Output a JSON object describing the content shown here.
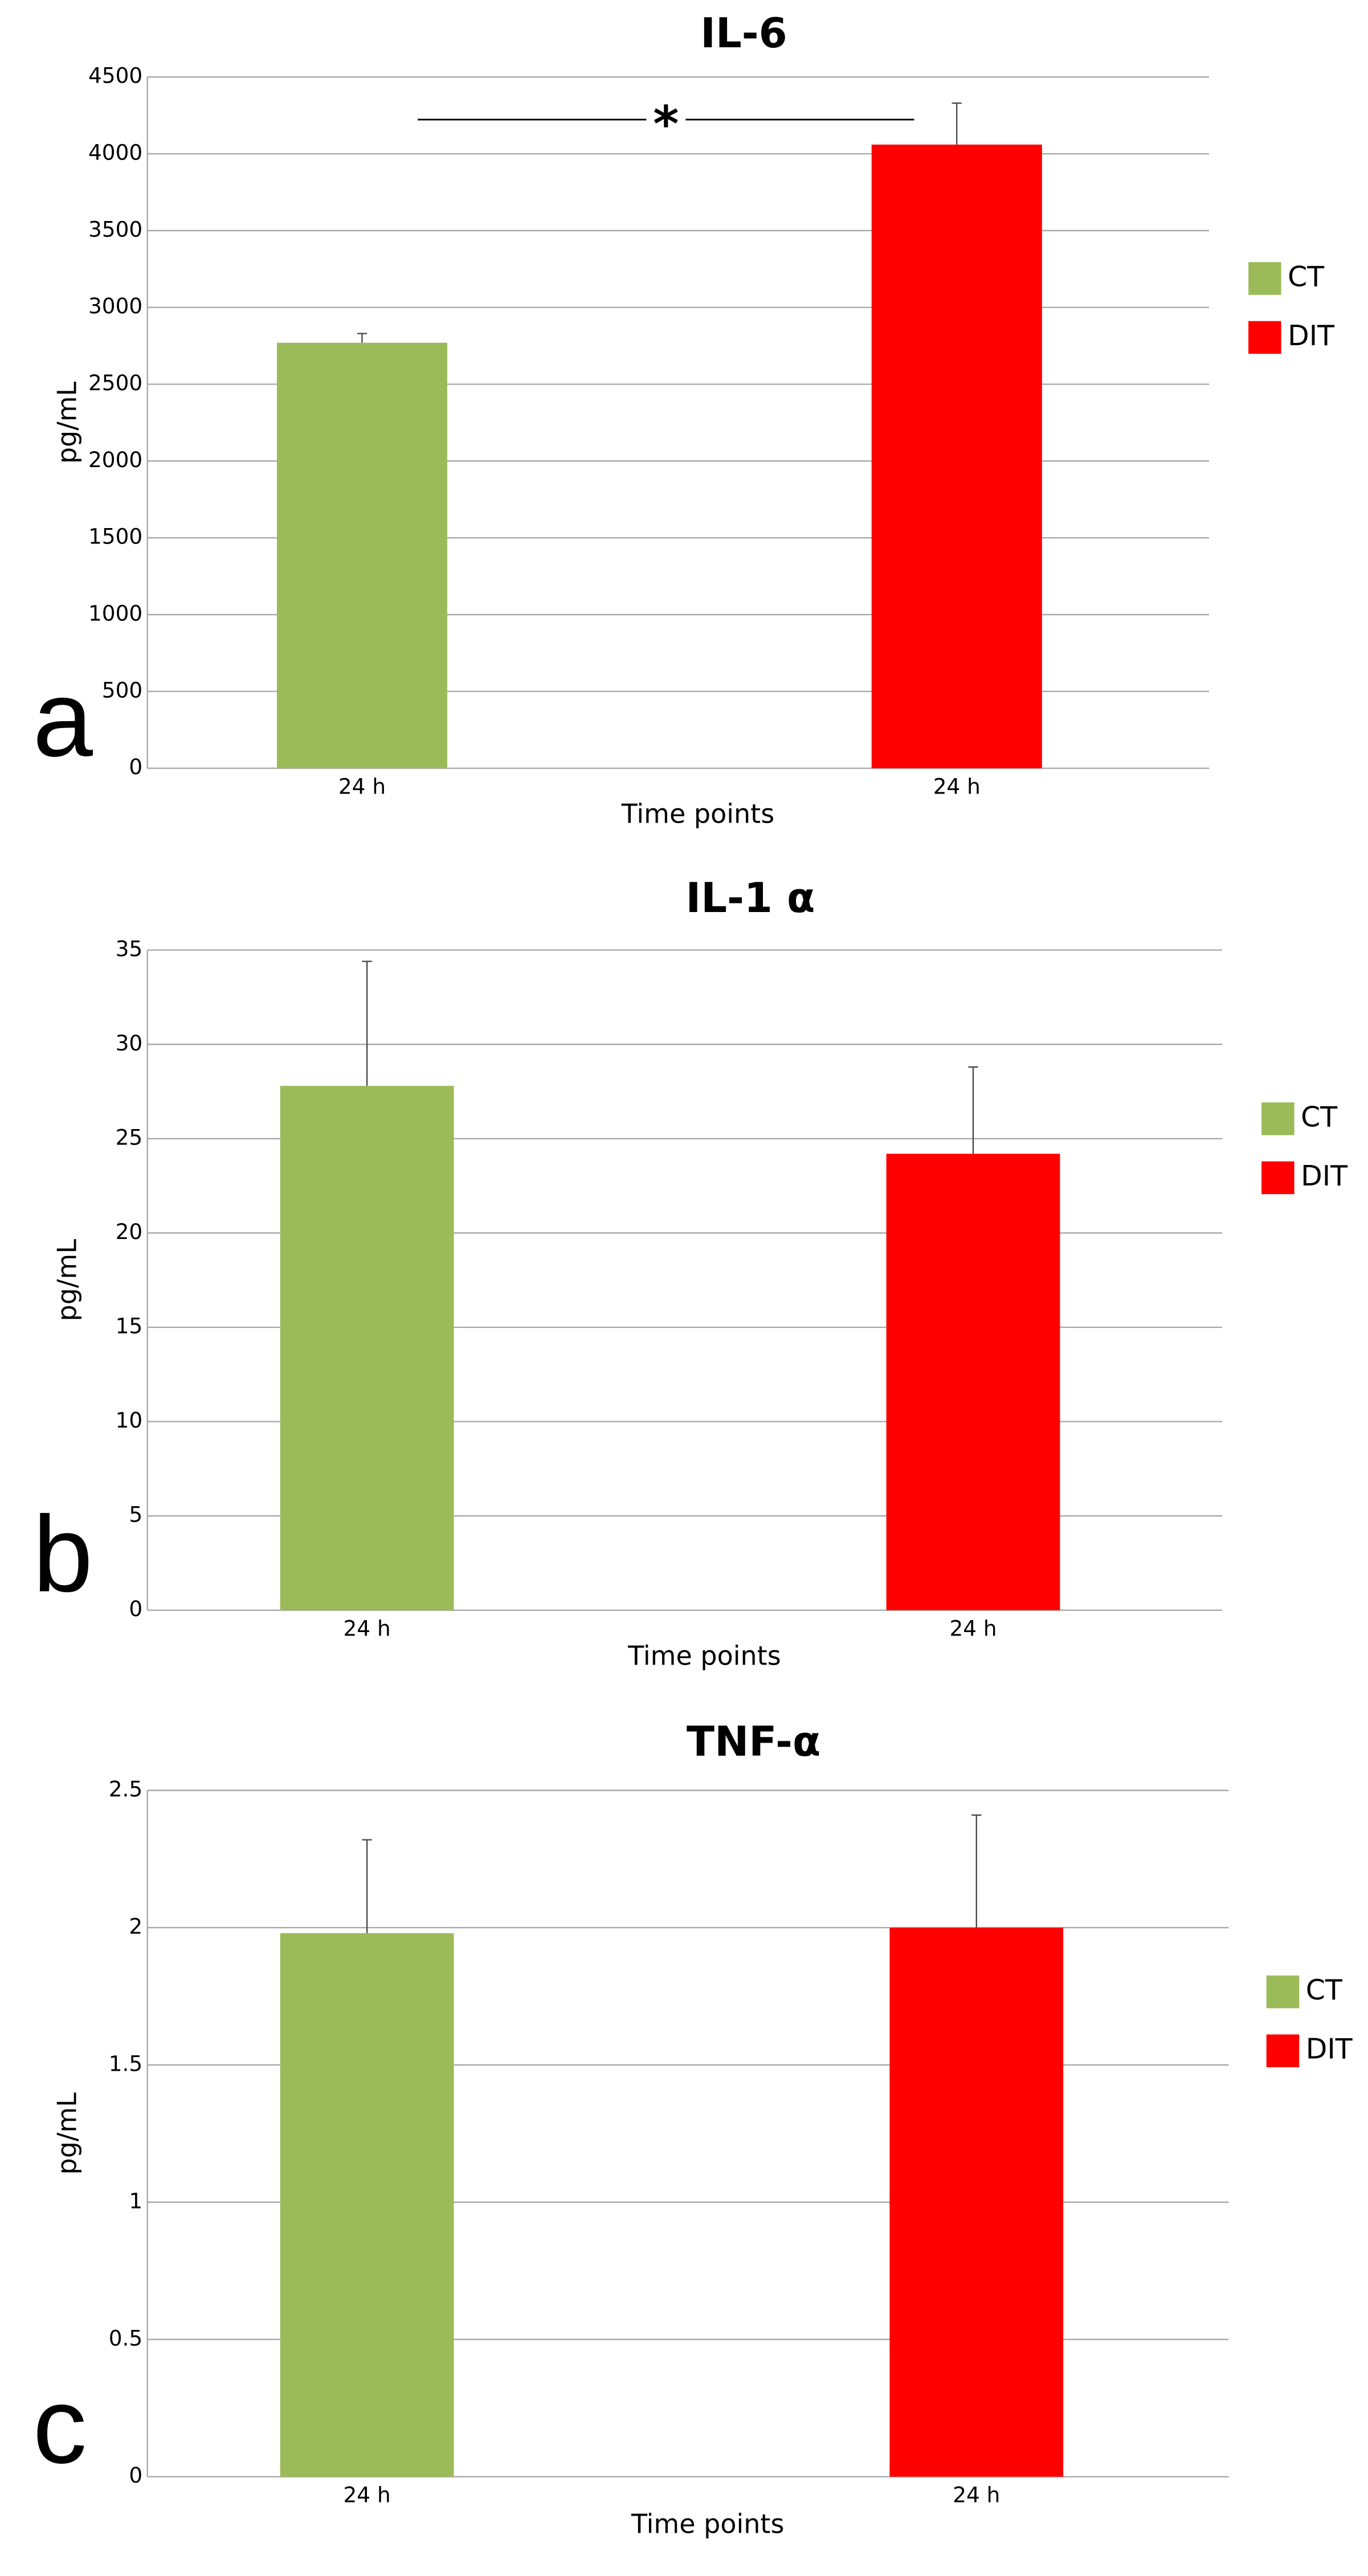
{
  "chart_data": [
    {
      "type": "bar",
      "title": "IL-6",
      "panel_label": "a",
      "x_label": "Time points",
      "y_label": "pg/mL",
      "categories": [
        "24 h",
        "24 h"
      ],
      "series": [
        {
          "name": "CT",
          "color": "#9bbb59",
          "values": [
            2770,
            null
          ],
          "errors": [
            60,
            null
          ]
        },
        {
          "name": "DIT",
          "color": "#ff0000",
          "values": [
            null,
            4060
          ],
          "errors": [
            null,
            270
          ]
        }
      ],
      "annotation": "*",
      "ylim": [
        0,
        4500
      ],
      "yticks": [
        0,
        500,
        1000,
        1500,
        2000,
        2500,
        3000,
        3500,
        4000,
        4500
      ],
      "grid": true,
      "legend": "right"
    },
    {
      "type": "bar",
      "title": "IL-1 α",
      "panel_label": "b",
      "x_label": "Time points",
      "y_label": "pg/mL",
      "categories": [
        "24 h",
        "24 h"
      ],
      "series": [
        {
          "name": "CT",
          "color": "#9bbb59",
          "values": [
            27.8,
            null
          ],
          "errors": [
            6.6,
            null
          ]
        },
        {
          "name": "DIT",
          "color": "#ff0000",
          "values": [
            null,
            24.2
          ],
          "errors": [
            null,
            4.6
          ]
        }
      ],
      "ylim": [
        0,
        35
      ],
      "yticks": [
        0,
        5,
        10,
        15,
        20,
        25,
        30,
        35
      ],
      "grid": true,
      "legend": "right"
    },
    {
      "type": "bar",
      "title": "TNF-α",
      "panel_label": "c",
      "x_label": "Time points",
      "y_label": "pg/mL",
      "categories": [
        "24 h",
        "24 h"
      ],
      "series": [
        {
          "name": "CT",
          "color": "#9bbb59",
          "values": [
            1.98,
            null
          ],
          "errors": [
            0.34,
            null
          ]
        },
        {
          "name": "DIT",
          "color": "#ff0000",
          "values": [
            null,
            2.0
          ],
          "errors": [
            null,
            0.41
          ]
        }
      ],
      "ylim": [
        0,
        2.5
      ],
      "yticks": [
        0,
        0.5,
        1,
        1.5,
        2,
        2.5
      ],
      "grid": true,
      "legend": "right"
    }
  ]
}
